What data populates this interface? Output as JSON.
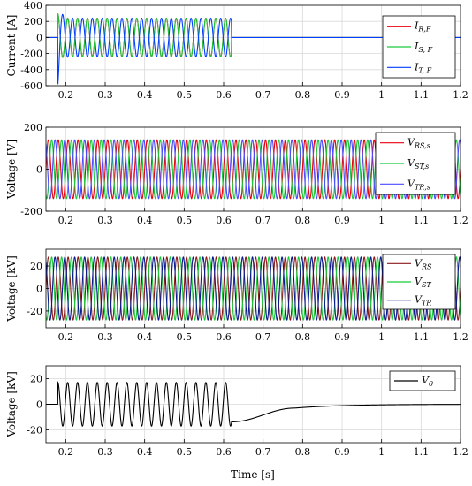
{
  "figure": {
    "xlabel": "Time [s]"
  },
  "chart_data": [
    {
      "type": "line",
      "ylabel": "Current [A]",
      "xlim": [
        0.15,
        1.2
      ],
      "ylim": [
        -600,
        400
      ],
      "yticks": [
        "400",
        "200",
        "0",
        "-200",
        "-400",
        "-600"
      ],
      "xticks": [
        "0.2",
        "0.3",
        "0.4",
        "0.5",
        "0.6",
        "0.7",
        "0.8",
        "0.9",
        "1",
        "1.1",
        "1.2"
      ],
      "grid": true,
      "legend_position": "top-right",
      "series": [
        {
          "name": "I",
          "sub": "R,F",
          "color": "#e8000b",
          "kind": "fault-current",
          "amplitude": 240,
          "fault_window": [
            0.18,
            0.62
          ],
          "spike": 300
        },
        {
          "name": "I",
          "sub": "S, F",
          "color": "#1ac938",
          "kind": "fault-current",
          "amplitude": 240,
          "fault_window": [
            0.18,
            0.62
          ],
          "spike": 300
        },
        {
          "name": "I",
          "sub": "T, F",
          "color": "#023eff",
          "kind": "fault-current",
          "amplitude": 240,
          "fault_window": [
            0.18,
            0.62
          ],
          "spike": -600
        }
      ]
    },
    {
      "type": "line",
      "ylabel": "Voltage [V]",
      "xlim": [
        0.15,
        1.2
      ],
      "ylim": [
        -200,
        200
      ],
      "yticks": [
        "200",
        "0",
        "-200"
      ],
      "xticks": [
        "0.2",
        "0.3",
        "0.4",
        "0.5",
        "0.6",
        "0.7",
        "0.8",
        "0.9",
        "1",
        "1.1",
        "1.2"
      ],
      "grid": true,
      "legend_position": "top-right",
      "series": [
        {
          "name": "V",
          "sub": "RS,s",
          "color": "#e8000b",
          "kind": "three-phase",
          "amplitude": 140,
          "phase_deg": 0
        },
        {
          "name": "V",
          "sub": "ST,s",
          "color": "#1ac938",
          "kind": "three-phase",
          "amplitude": 140,
          "phase_deg": -120
        },
        {
          "name": "V",
          "sub": "TR,s",
          "color": "#4b4bff",
          "kind": "three-phase",
          "amplitude": 140,
          "phase_deg": 120
        }
      ]
    },
    {
      "type": "line",
      "ylabel": "Voltage [kV]",
      "xlim": [
        0.15,
        1.2
      ],
      "ylim": [
        -35,
        35
      ],
      "yticks": [
        "20",
        "0",
        "-20"
      ],
      "xticks": [
        "0.2",
        "0.3",
        "0.4",
        "0.5",
        "0.6",
        "0.7",
        "0.8",
        "0.9",
        "1",
        "1.1",
        "1.2"
      ],
      "grid": true,
      "legend_position": "top-right",
      "series": [
        {
          "name": "V",
          "sub": "RS",
          "color": "#8b1a1a",
          "kind": "three-phase",
          "amplitude": 28,
          "phase_deg": 0
        },
        {
          "name": "V",
          "sub": "ST",
          "color": "#1ac938",
          "kind": "three-phase",
          "amplitude": 28,
          "phase_deg": -120
        },
        {
          "name": "V",
          "sub": "TR",
          "color": "#0a1a8c",
          "kind": "three-phase",
          "amplitude": 28,
          "phase_deg": 120
        }
      ]
    },
    {
      "type": "line",
      "ylabel": "Voltage [kV]",
      "xlim": [
        0.15,
        1.2
      ],
      "ylim": [
        -30,
        30
      ],
      "yticks": [
        "20",
        "0",
        "-20"
      ],
      "xticks": [
        "0.2",
        "0.3",
        "0.4",
        "0.5",
        "0.6",
        "0.7",
        "0.8",
        "0.9",
        "1",
        "1.1",
        "1.2"
      ],
      "grid": true,
      "legend_position": "top-right",
      "series": [
        {
          "name": "V",
          "sub": "0",
          "color": "#000000",
          "kind": "zero-sequence",
          "amplitude": 17,
          "fault_window": [
            0.18,
            0.62
          ],
          "decay_end": 0.78,
          "decay_min": -3
        }
      ]
    }
  ]
}
